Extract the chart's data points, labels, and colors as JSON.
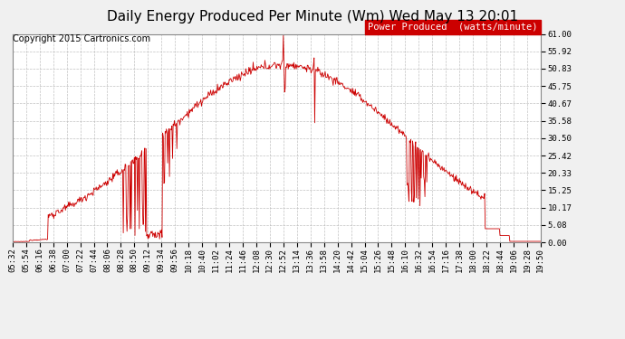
{
  "title": "Daily Energy Produced Per Minute (Wm) Wed May 13 20:01",
  "copyright": "Copyright 2015 Cartronics.com",
  "legend_label": "Power Produced  (watts/minute)",
  "legend_bg": "#cc0000",
  "legend_fg": "#ffffff",
  "line_color": "#cc0000",
  "bg_color": "#f0f0f0",
  "plot_bg": "#ffffff",
  "grid_color": "#bbbbbb",
  "ylim": [
    0,
    61.0
  ],
  "yticks": [
    0.0,
    5.08,
    10.17,
    15.25,
    20.33,
    25.42,
    30.5,
    35.58,
    40.67,
    45.75,
    50.83,
    55.92,
    61.0
  ],
  "ytick_labels": [
    "0.00",
    "5.08",
    "10.17",
    "15.25",
    "20.33",
    "25.42",
    "30.50",
    "35.58",
    "40.67",
    "45.75",
    "50.83",
    "55.92",
    "61.00"
  ],
  "title_fontsize": 11,
  "copyright_fontsize": 7,
  "tick_fontsize": 6.5,
  "legend_fontsize": 7.5
}
